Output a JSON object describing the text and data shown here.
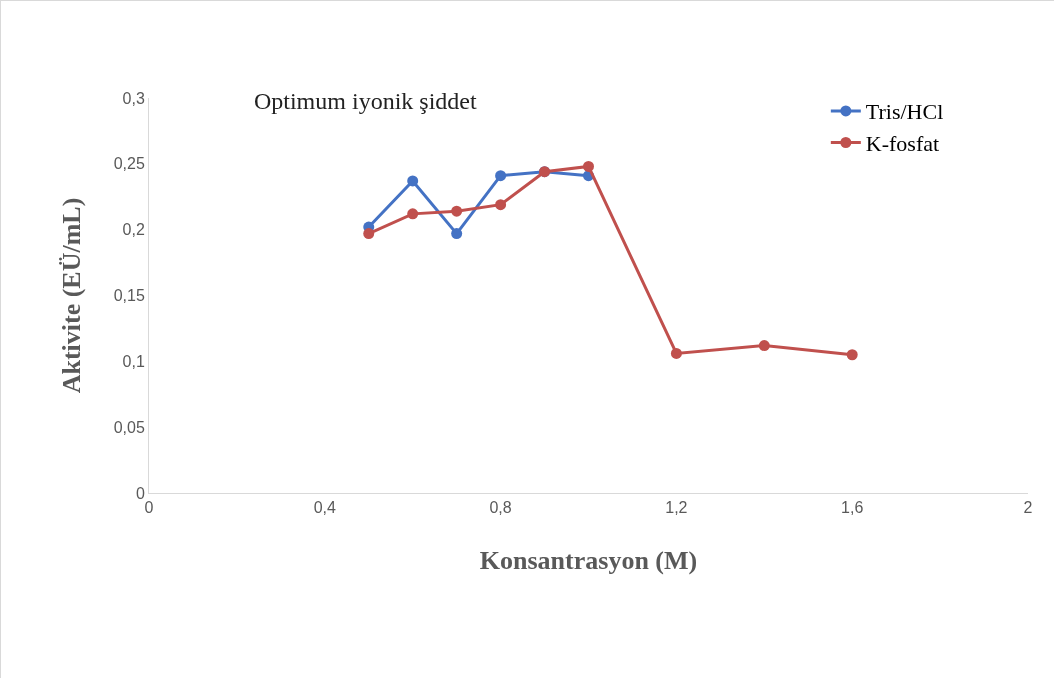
{
  "chart_data": {
    "type": "line",
    "title": "Optimum iyonik şiddet",
    "xlabel": "Konsantrasyon (M)",
    "ylabel": "Aktivite (EÜ/mL)",
    "xlim": [
      0,
      2
    ],
    "xticks": [
      0,
      {
        "value": 0.4,
        "label": "0,4"
      },
      {
        "value": 0.8,
        "label": "0,8"
      },
      {
        "value": 1.2,
        "label": "1,2"
      },
      {
        "value": 1.6,
        "label": "1,6"
      },
      2
    ],
    "ylim": [
      0,
      0.3
    ],
    "yticks": [
      0,
      {
        "value": 0.05,
        "label": "0,05"
      },
      {
        "value": 0.1,
        "label": "0,1"
      },
      {
        "value": 0.15,
        "label": "0,15"
      },
      {
        "value": 0.2,
        "label": "0,2"
      },
      {
        "value": 0.25,
        "label": "0,25"
      },
      {
        "value": 0.3,
        "label": "0,3"
      }
    ],
    "grid": false,
    "legend": "top right",
    "marker": "circle",
    "line_style": "solid",
    "series": [
      {
        "name": "Tris/HCl",
        "color": "#4472c4",
        "x": [
          0.5,
          0.6,
          0.7,
          0.8,
          0.9,
          1.0
        ],
        "values": [
          0.202,
          0.237,
          0.197,
          0.241,
          0.244,
          0.241
        ]
      },
      {
        "name": "K-fosfat",
        "color": "#c0504d",
        "x": [
          0.5,
          0.6,
          0.7,
          0.8,
          0.9,
          1.0,
          1.2,
          1.4,
          1.6
        ],
        "values": [
          0.197,
          0.212,
          0.214,
          0.219,
          0.244,
          0.248,
          0.106,
          0.112,
          0.105
        ]
      }
    ]
  }
}
